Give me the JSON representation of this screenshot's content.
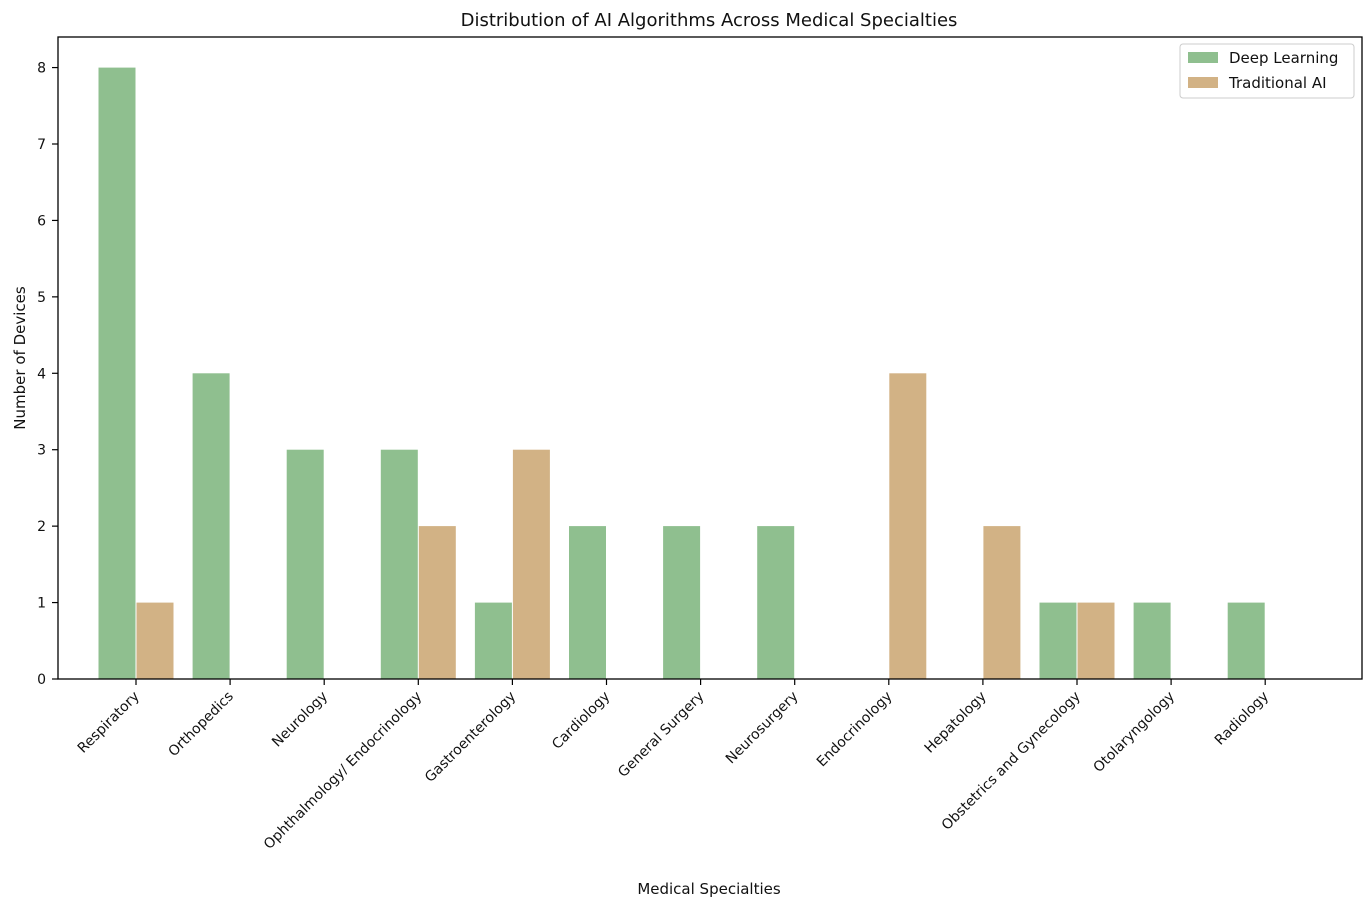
{
  "chart_data": {
    "type": "bar",
    "title": "Distribution of AI Algorithms Across Medical Specialties",
    "xlabel": "Medical Specialties",
    "ylabel": "Number of Devices",
    "ylim": [
      0,
      8.4
    ],
    "yticks": [
      "0",
      "1",
      "2",
      "3",
      "4",
      "5",
      "6",
      "7",
      "8"
    ],
    "grid": false,
    "legend_position": "top-right",
    "categories": [
      "Respiratory",
      "Orthopedics",
      "Neurology",
      "Ophthalmology/ Endocrinology",
      "Gastroenterology",
      "Cardiology",
      "General Surgery",
      "Neurosurgery",
      "Endocrinology",
      "Hepatology",
      "Obstetrics and Gynecology",
      "Otolaryngology",
      "Radiology"
    ],
    "series": [
      {
        "name": "Deep Learning",
        "color": "#8fbf8f",
        "values": [
          8,
          4,
          3,
          3,
          1,
          2,
          2,
          2,
          0,
          0,
          1,
          1,
          1
        ]
      },
      {
        "name": "Traditional AI",
        "color": "#d2b285",
        "values": [
          1,
          0,
          0,
          2,
          3,
          0,
          0,
          0,
          4,
          2,
          1,
          0,
          0
        ]
      }
    ]
  }
}
